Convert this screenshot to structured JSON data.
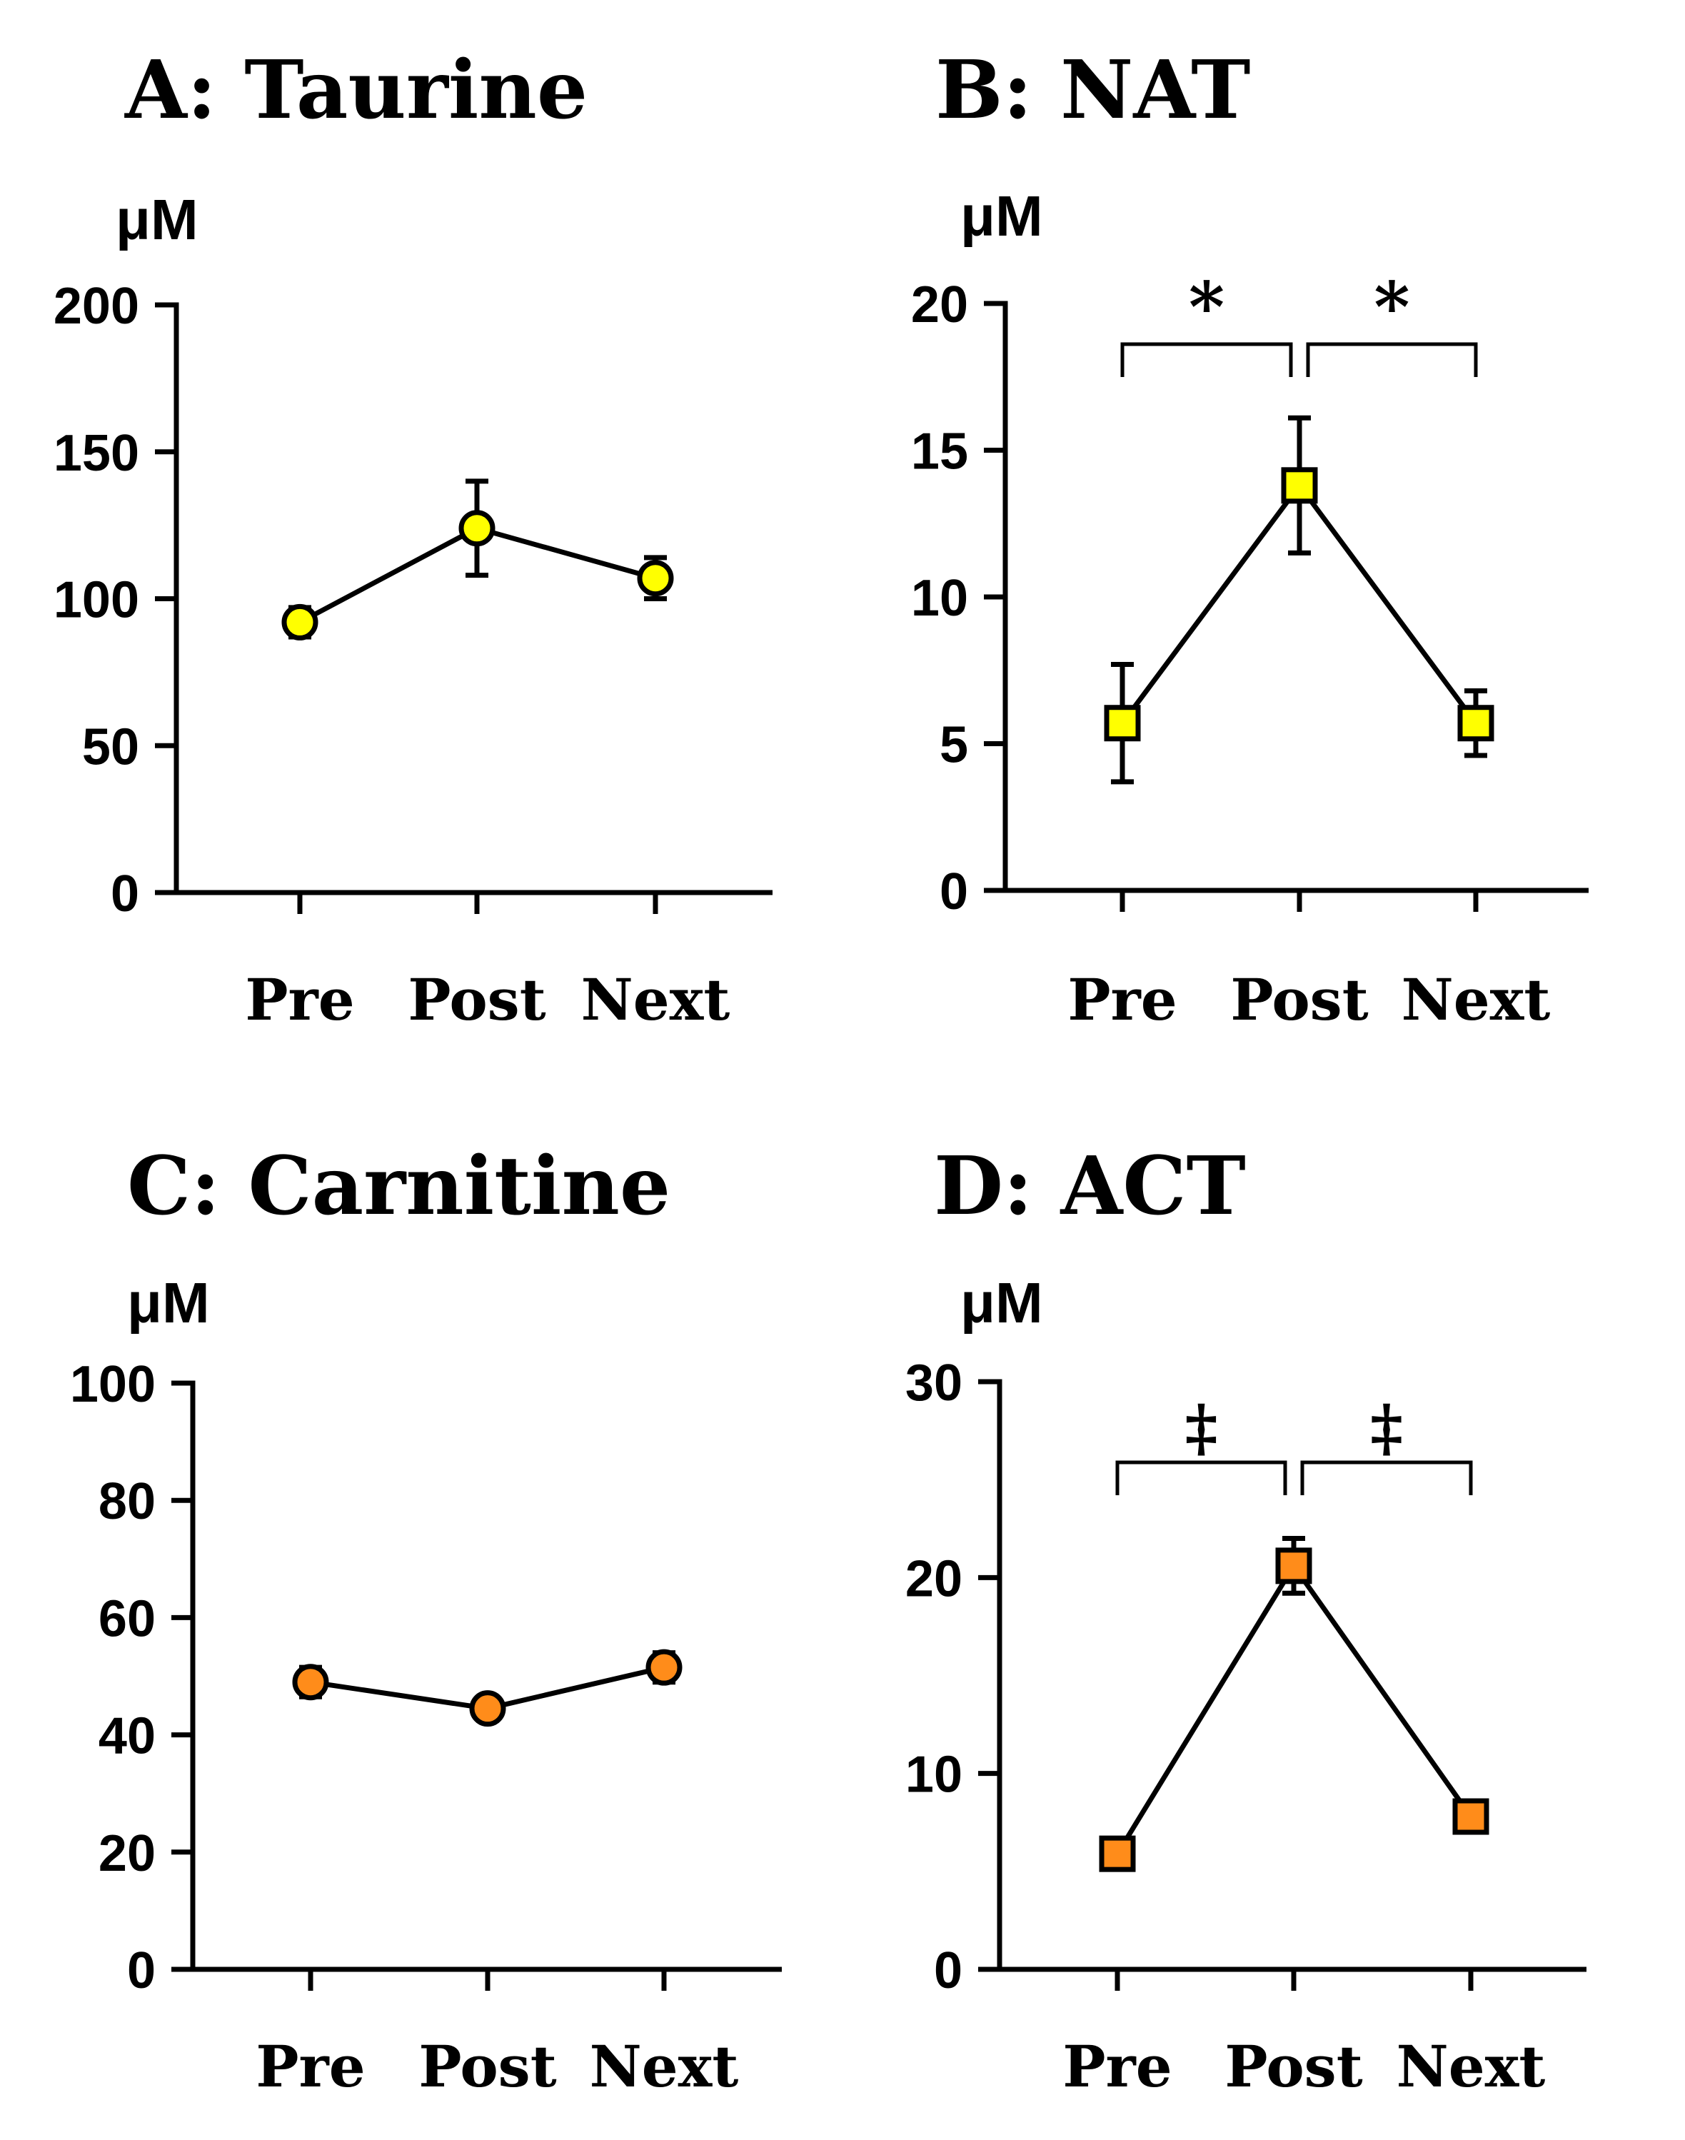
{
  "chart_data": [
    {
      "type": "line",
      "title": "A: Taurine",
      "ylabel": "μM",
      "xlabel": "",
      "categories": [
        "Pre",
        "Post",
        "Next"
      ],
      "series": [
        {
          "name": "Taurine",
          "values": [
            92,
            124,
            107
          ],
          "errors": [
            5,
            16,
            7
          ],
          "marker": "circle",
          "color": "#ffff00"
        }
      ],
      "ylim": [
        0,
        200
      ],
      "yticks": [
        0,
        50,
        100,
        150,
        200
      ],
      "yticklabels": [
        "0",
        "50",
        "100",
        "150",
        "200"
      ],
      "significance": []
    },
    {
      "type": "line",
      "title": "B: NAT",
      "ylabel": "μM",
      "xlabel": "",
      "categories": [
        "Pre",
        "Post",
        "Next"
      ],
      "series": [
        {
          "name": "NAT",
          "values": [
            5.7,
            13.8,
            5.7
          ],
          "errors": [
            2.0,
            2.3,
            1.1
          ],
          "marker": "square",
          "color": "#ffff00"
        }
      ],
      "ylim": [
        0,
        20
      ],
      "yticks": [
        0,
        5,
        10,
        15,
        20
      ],
      "yticklabels": [
        "0",
        "5",
        "10",
        "15",
        "20"
      ],
      "significance": [
        {
          "from": 0,
          "to": 1,
          "label": "*"
        },
        {
          "from": 1,
          "to": 2,
          "label": "*"
        }
      ]
    },
    {
      "type": "line",
      "title": "C: Carnitine",
      "ylabel": "μM",
      "xlabel": "",
      "categories": [
        "Pre",
        "Post",
        "Next"
      ],
      "series": [
        {
          "name": "Carnitine",
          "values": [
            49,
            44.5,
            51.5
          ],
          "errors": [
            2.5,
            2.0,
            2.5
          ],
          "marker": "circle",
          "color": "#ff8c1a"
        }
      ],
      "ylim": [
        0,
        100
      ],
      "yticks": [
        0,
        20,
        40,
        60,
        80,
        100
      ],
      "yticklabels": [
        "0",
        "20",
        "40",
        "60",
        "80",
        "100"
      ],
      "significance": []
    },
    {
      "type": "line",
      "title": "D: ACT",
      "ylabel": "μM",
      "xlabel": "",
      "categories": [
        "Pre",
        "Post",
        "Next"
      ],
      "series": [
        {
          "name": "ACT",
          "values": [
            5.9,
            20.6,
            7.8
          ],
          "errors": [
            0,
            1.4,
            0
          ],
          "marker": "square",
          "color": "#ff8c1a"
        }
      ],
      "ylim": [
        0,
        30
      ],
      "yticks": [
        0,
        10,
        20,
        30
      ],
      "yticklabels": [
        "0",
        "10",
        "20",
        "30"
      ],
      "significance": [
        {
          "from": 0,
          "to": 1,
          "label": "‡"
        },
        {
          "from": 1,
          "to": 2,
          "label": "‡"
        }
      ]
    }
  ]
}
